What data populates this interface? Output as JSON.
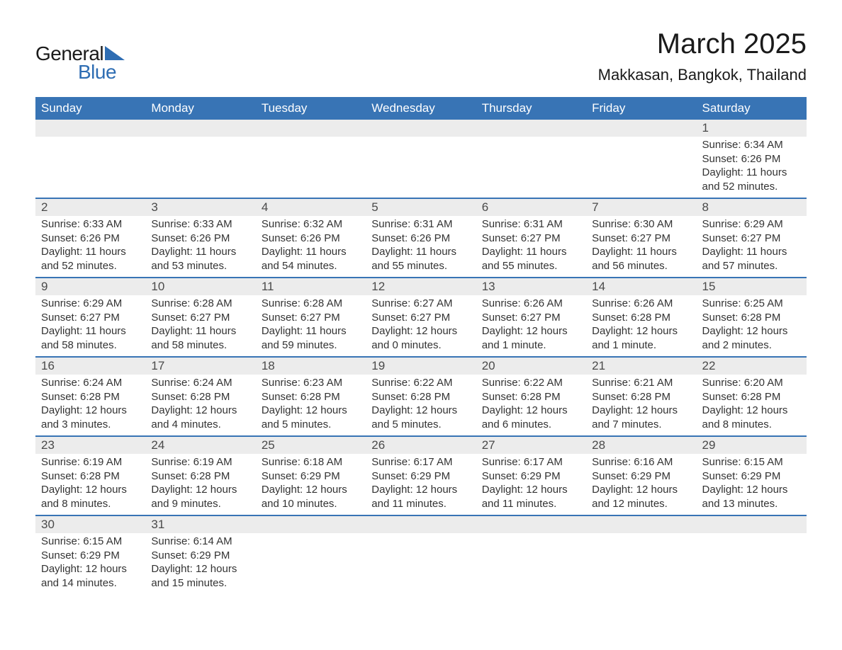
{
  "logo": {
    "text_general": "General",
    "text_blue": "Blue",
    "triangle_color": "#2e6db3"
  },
  "header": {
    "month": "March 2025",
    "location": "Makkasan, Bangkok, Thailand"
  },
  "colors": {
    "header_bg": "#3874b5",
    "header_text": "#ffffff",
    "daynum_bg": "#ececec",
    "row_border": "#3874b5",
    "body_text": "#333333"
  },
  "weekdays": [
    "Sunday",
    "Monday",
    "Tuesday",
    "Wednesday",
    "Thursday",
    "Friday",
    "Saturday"
  ],
  "weeks": [
    [
      null,
      null,
      null,
      null,
      null,
      null,
      {
        "n": "1",
        "sr": "Sunrise: 6:34 AM",
        "ss": "Sunset: 6:26 PM",
        "d1": "Daylight: 11 hours",
        "d2": "and 52 minutes."
      }
    ],
    [
      {
        "n": "2",
        "sr": "Sunrise: 6:33 AM",
        "ss": "Sunset: 6:26 PM",
        "d1": "Daylight: 11 hours",
        "d2": "and 52 minutes."
      },
      {
        "n": "3",
        "sr": "Sunrise: 6:33 AM",
        "ss": "Sunset: 6:26 PM",
        "d1": "Daylight: 11 hours",
        "d2": "and 53 minutes."
      },
      {
        "n": "4",
        "sr": "Sunrise: 6:32 AM",
        "ss": "Sunset: 6:26 PM",
        "d1": "Daylight: 11 hours",
        "d2": "and 54 minutes."
      },
      {
        "n": "5",
        "sr": "Sunrise: 6:31 AM",
        "ss": "Sunset: 6:26 PM",
        "d1": "Daylight: 11 hours",
        "d2": "and 55 minutes."
      },
      {
        "n": "6",
        "sr": "Sunrise: 6:31 AM",
        "ss": "Sunset: 6:27 PM",
        "d1": "Daylight: 11 hours",
        "d2": "and 55 minutes."
      },
      {
        "n": "7",
        "sr": "Sunrise: 6:30 AM",
        "ss": "Sunset: 6:27 PM",
        "d1": "Daylight: 11 hours",
        "d2": "and 56 minutes."
      },
      {
        "n": "8",
        "sr": "Sunrise: 6:29 AM",
        "ss": "Sunset: 6:27 PM",
        "d1": "Daylight: 11 hours",
        "d2": "and 57 minutes."
      }
    ],
    [
      {
        "n": "9",
        "sr": "Sunrise: 6:29 AM",
        "ss": "Sunset: 6:27 PM",
        "d1": "Daylight: 11 hours",
        "d2": "and 58 minutes."
      },
      {
        "n": "10",
        "sr": "Sunrise: 6:28 AM",
        "ss": "Sunset: 6:27 PM",
        "d1": "Daylight: 11 hours",
        "d2": "and 58 minutes."
      },
      {
        "n": "11",
        "sr": "Sunrise: 6:28 AM",
        "ss": "Sunset: 6:27 PM",
        "d1": "Daylight: 11 hours",
        "d2": "and 59 minutes."
      },
      {
        "n": "12",
        "sr": "Sunrise: 6:27 AM",
        "ss": "Sunset: 6:27 PM",
        "d1": "Daylight: 12 hours",
        "d2": "and 0 minutes."
      },
      {
        "n": "13",
        "sr": "Sunrise: 6:26 AM",
        "ss": "Sunset: 6:27 PM",
        "d1": "Daylight: 12 hours",
        "d2": "and 1 minute."
      },
      {
        "n": "14",
        "sr": "Sunrise: 6:26 AM",
        "ss": "Sunset: 6:28 PM",
        "d1": "Daylight: 12 hours",
        "d2": "and 1 minute."
      },
      {
        "n": "15",
        "sr": "Sunrise: 6:25 AM",
        "ss": "Sunset: 6:28 PM",
        "d1": "Daylight: 12 hours",
        "d2": "and 2 minutes."
      }
    ],
    [
      {
        "n": "16",
        "sr": "Sunrise: 6:24 AM",
        "ss": "Sunset: 6:28 PM",
        "d1": "Daylight: 12 hours",
        "d2": "and 3 minutes."
      },
      {
        "n": "17",
        "sr": "Sunrise: 6:24 AM",
        "ss": "Sunset: 6:28 PM",
        "d1": "Daylight: 12 hours",
        "d2": "and 4 minutes."
      },
      {
        "n": "18",
        "sr": "Sunrise: 6:23 AM",
        "ss": "Sunset: 6:28 PM",
        "d1": "Daylight: 12 hours",
        "d2": "and 5 minutes."
      },
      {
        "n": "19",
        "sr": "Sunrise: 6:22 AM",
        "ss": "Sunset: 6:28 PM",
        "d1": "Daylight: 12 hours",
        "d2": "and 5 minutes."
      },
      {
        "n": "20",
        "sr": "Sunrise: 6:22 AM",
        "ss": "Sunset: 6:28 PM",
        "d1": "Daylight: 12 hours",
        "d2": "and 6 minutes."
      },
      {
        "n": "21",
        "sr": "Sunrise: 6:21 AM",
        "ss": "Sunset: 6:28 PM",
        "d1": "Daylight: 12 hours",
        "d2": "and 7 minutes."
      },
      {
        "n": "22",
        "sr": "Sunrise: 6:20 AM",
        "ss": "Sunset: 6:28 PM",
        "d1": "Daylight: 12 hours",
        "d2": "and 8 minutes."
      }
    ],
    [
      {
        "n": "23",
        "sr": "Sunrise: 6:19 AM",
        "ss": "Sunset: 6:28 PM",
        "d1": "Daylight: 12 hours",
        "d2": "and 8 minutes."
      },
      {
        "n": "24",
        "sr": "Sunrise: 6:19 AM",
        "ss": "Sunset: 6:28 PM",
        "d1": "Daylight: 12 hours",
        "d2": "and 9 minutes."
      },
      {
        "n": "25",
        "sr": "Sunrise: 6:18 AM",
        "ss": "Sunset: 6:29 PM",
        "d1": "Daylight: 12 hours",
        "d2": "and 10 minutes."
      },
      {
        "n": "26",
        "sr": "Sunrise: 6:17 AM",
        "ss": "Sunset: 6:29 PM",
        "d1": "Daylight: 12 hours",
        "d2": "and 11 minutes."
      },
      {
        "n": "27",
        "sr": "Sunrise: 6:17 AM",
        "ss": "Sunset: 6:29 PM",
        "d1": "Daylight: 12 hours",
        "d2": "and 11 minutes."
      },
      {
        "n": "28",
        "sr": "Sunrise: 6:16 AM",
        "ss": "Sunset: 6:29 PM",
        "d1": "Daylight: 12 hours",
        "d2": "and 12 minutes."
      },
      {
        "n": "29",
        "sr": "Sunrise: 6:15 AM",
        "ss": "Sunset: 6:29 PM",
        "d1": "Daylight: 12 hours",
        "d2": "and 13 minutes."
      }
    ],
    [
      {
        "n": "30",
        "sr": "Sunrise: 6:15 AM",
        "ss": "Sunset: 6:29 PM",
        "d1": "Daylight: 12 hours",
        "d2": "and 14 minutes."
      },
      {
        "n": "31",
        "sr": "Sunrise: 6:14 AM",
        "ss": "Sunset: 6:29 PM",
        "d1": "Daylight: 12 hours",
        "d2": "and 15 minutes."
      },
      null,
      null,
      null,
      null,
      null
    ]
  ]
}
